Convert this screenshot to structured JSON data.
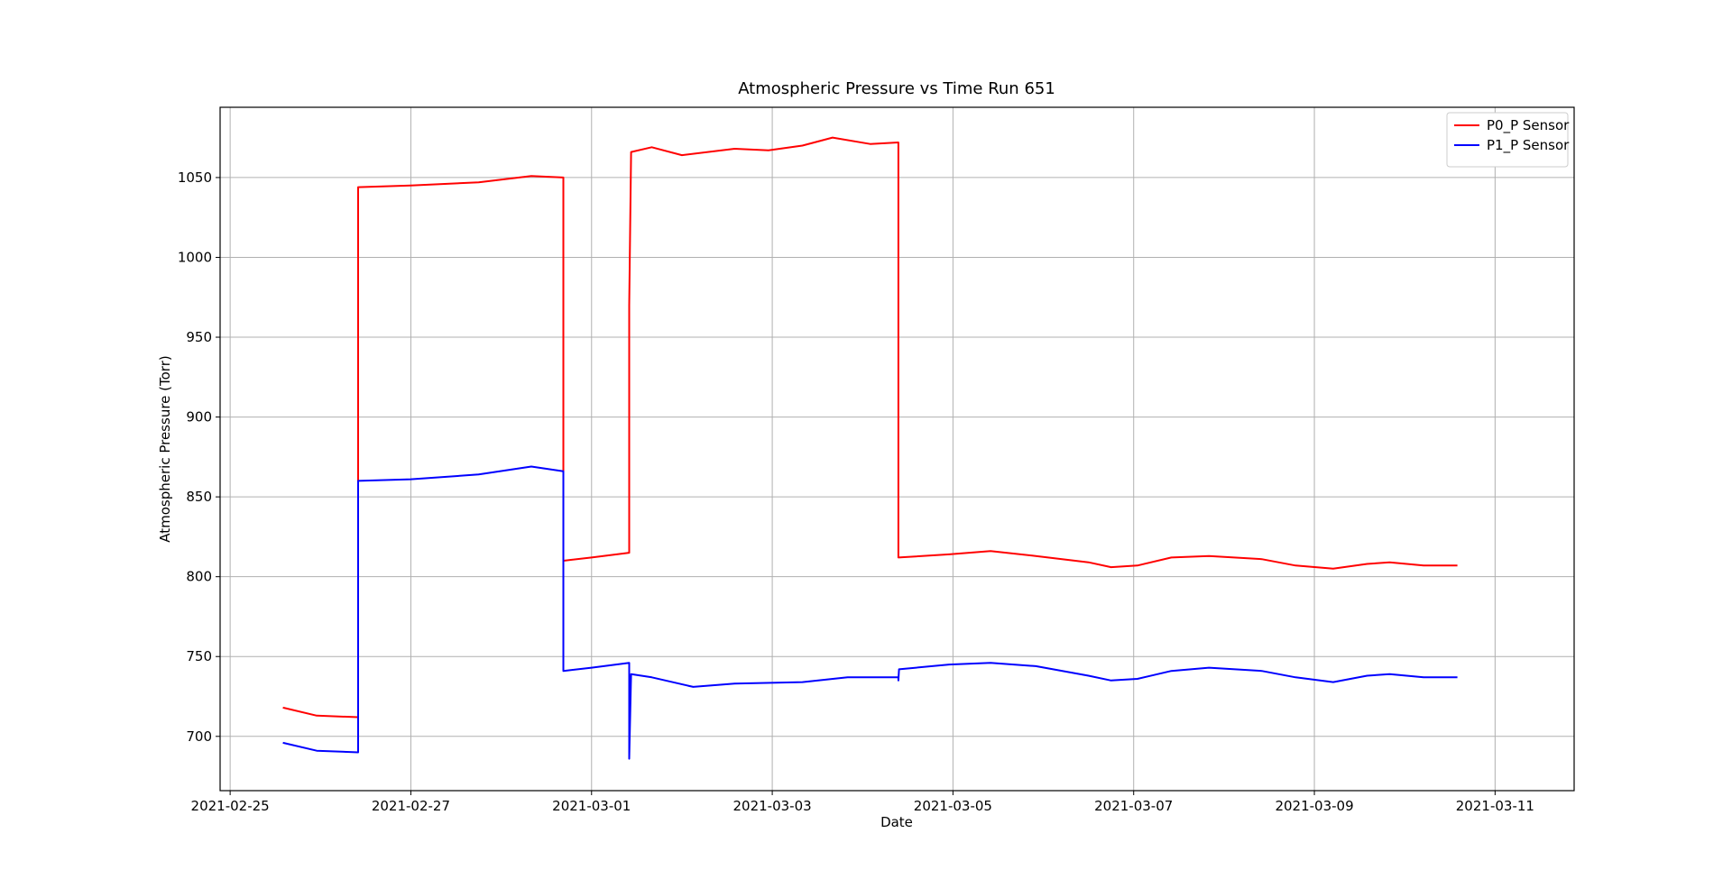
{
  "chart_data": {
    "type": "line",
    "title": "Atmospheric Pressure vs Time Run 651",
    "x_label": "Date",
    "y_label": "Atmospheric Pressure (Torr)",
    "xlim": [
      "2021-02-24 21:20",
      "2021-03-11 21:00"
    ],
    "xticks": [
      "2021-02-25",
      "2021-02-27",
      "2021-03-01",
      "2021-03-03",
      "2021-03-05",
      "2021-03-07",
      "2021-03-09",
      "2021-03-11"
    ],
    "ylim": [
      666,
      1094
    ],
    "yticks": [
      700,
      750,
      800,
      850,
      900,
      950,
      1000,
      1050
    ],
    "grid": true,
    "legend": "upper right",
    "series": [
      {
        "name": "P0_P Sensor",
        "color": "#ff0000",
        "x": [
          "2021-02-25 14:00",
          "2021-02-25 23:00",
          "2021-02-26 10:00",
          "2021-02-26 10:00",
          "2021-02-27 00:00",
          "2021-02-27 18:00",
          "2021-02-28 08:00",
          "2021-02-28 16:30",
          "2021-02-28 16:30",
          "2021-03-01 00:00",
          "2021-03-01 10:00",
          "2021-03-01 10:00",
          "2021-03-01 10:30",
          "2021-03-01 16:00",
          "2021-03-02 00:00",
          "2021-03-02 14:00",
          "2021-03-02 23:00",
          "2021-03-03 08:00",
          "2021-03-03 16:00",
          "2021-03-04 02:00",
          "2021-03-04 09:30",
          "2021-03-04 09:30",
          "2021-03-04 23:00",
          "2021-03-05 10:00",
          "2021-03-05 22:00",
          "2021-03-06 12:00",
          "2021-03-06 18:00",
          "2021-03-07 01:00",
          "2021-03-07 10:00",
          "2021-03-07 20:00",
          "2021-03-08 10:00",
          "2021-03-08 19:00",
          "2021-03-09 05:00",
          "2021-03-09 14:00",
          "2021-03-09 20:00",
          "2021-03-10 05:00",
          "2021-03-10 14:00"
        ],
        "values": [
          718,
          713,
          712,
          1044,
          1045,
          1047,
          1051,
          1050,
          810,
          812,
          815,
          970,
          1066,
          1069,
          1064,
          1068,
          1067,
          1070,
          1075,
          1071,
          1072,
          812,
          814,
          816,
          813,
          809,
          806,
          807,
          812,
          813,
          811,
          807,
          805,
          808,
          809,
          807,
          807
        ]
      },
      {
        "name": "P1_P Sensor",
        "color": "#0000ff",
        "x": [
          "2021-02-25 14:00",
          "2021-02-25 23:00",
          "2021-02-26 10:00",
          "2021-02-26 10:00",
          "2021-02-27 00:00",
          "2021-02-27 18:00",
          "2021-02-28 08:00",
          "2021-02-28 16:30",
          "2021-02-28 16:30",
          "2021-03-01 00:00",
          "2021-03-01 10:00",
          "2021-03-01 10:00",
          "2021-03-01 10:30",
          "2021-03-01 16:00",
          "2021-03-02 03:00",
          "2021-03-02 14:00",
          "2021-03-03 08:00",
          "2021-03-03 20:00",
          "2021-03-04 09:30",
          "2021-03-04 09:30",
          "2021-03-04 09:40",
          "2021-03-04 23:00",
          "2021-03-05 10:00",
          "2021-03-05 22:00",
          "2021-03-06 12:00",
          "2021-03-06 18:00",
          "2021-03-07 01:00",
          "2021-03-07 10:00",
          "2021-03-07 20:00",
          "2021-03-08 10:00",
          "2021-03-08 19:00",
          "2021-03-09 05:00",
          "2021-03-09 14:00",
          "2021-03-09 20:00",
          "2021-03-10 05:00",
          "2021-03-10 14:00"
        ],
        "values": [
          696,
          691,
          690,
          860,
          861,
          864,
          869,
          866,
          741,
          743,
          746,
          686,
          739,
          737,
          731,
          733,
          734,
          737,
          737,
          735,
          742,
          745,
          746,
          744,
          738,
          735,
          736,
          741,
          743,
          741,
          737,
          734,
          738,
          739,
          737,
          737
        ]
      }
    ]
  }
}
